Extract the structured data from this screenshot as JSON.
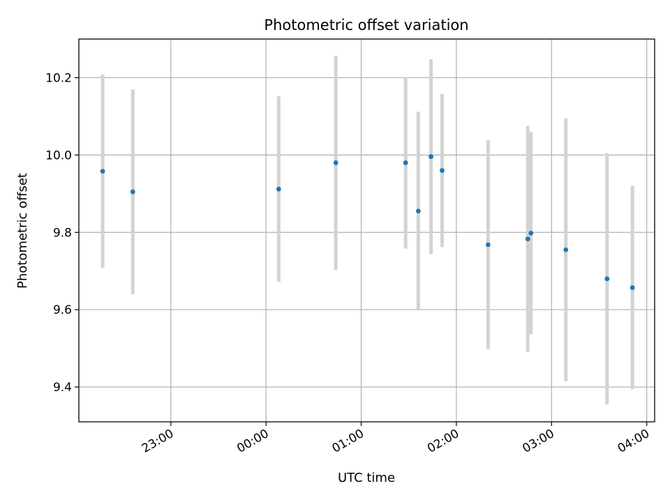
{
  "chart_data": {
    "type": "scatter",
    "title": "Photometric offset variation",
    "xlabel": "UTC time",
    "ylabel": "Photometric offset",
    "x_unit": "UTC hh:mm",
    "xlim": [
      "22:02",
      "04:05"
    ],
    "ylim": [
      9.31,
      10.3
    ],
    "grid": true,
    "x_ticks": [
      "23:00",
      "00:00",
      "01:00",
      "02:00",
      "03:00",
      "04:00"
    ],
    "y_ticks": [
      9.4,
      9.6,
      9.8,
      10.0,
      10.2
    ],
    "y_tick_labels": [
      "9.4",
      "9.6",
      "9.8",
      "10.0",
      "10.2"
    ],
    "point_color": "#1f77b4",
    "errorbar_color": "#d3d3d3",
    "points": [
      {
        "x": "22:17",
        "y": 9.958,
        "err": 0.25
      },
      {
        "x": "22:36",
        "y": 9.905,
        "err": 0.265
      },
      {
        "x": "00:08",
        "y": 9.912,
        "err": 0.24
      },
      {
        "x": "00:44",
        "y": 9.98,
        "err": 0.277
      },
      {
        "x": "01:28",
        "y": 9.98,
        "err": 0.222
      },
      {
        "x": "01:36",
        "y": 9.855,
        "err": 0.257
      },
      {
        "x": "01:44",
        "y": 9.996,
        "err": 0.252
      },
      {
        "x": "01:51",
        "y": 9.96,
        "err": 0.198
      },
      {
        "x": "02:20",
        "y": 9.768,
        "err": 0.27
      },
      {
        "x": "02:45",
        "y": 9.783,
        "err": 0.292
      },
      {
        "x": "02:47",
        "y": 9.798,
        "err": 0.262
      },
      {
        "x": "03:09",
        "y": 9.755,
        "err": 0.34
      },
      {
        "x": "03:35",
        "y": 9.68,
        "err": 0.325
      },
      {
        "x": "03:51",
        "y": 9.657,
        "err": 0.263
      }
    ]
  }
}
